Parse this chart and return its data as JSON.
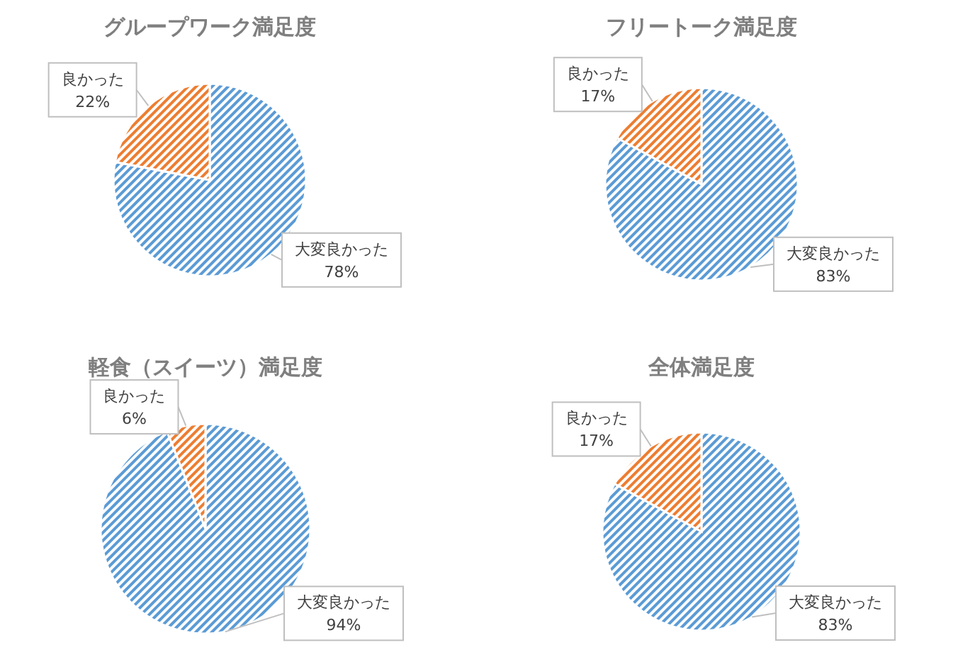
{
  "chart_data": [
    {
      "type": "pie",
      "title": "グループワーク満足度",
      "categories": [
        "大変良かった",
        "良かった"
      ],
      "values": [
        78,
        22
      ],
      "value_labels": [
        "78%",
        "22%"
      ],
      "colors": [
        "#5b9bd5",
        "#ed7d31"
      ],
      "legend": false
    },
    {
      "type": "pie",
      "title": "フリートーク満足度",
      "categories": [
        "大変良かった",
        "良かった"
      ],
      "values": [
        83,
        17
      ],
      "value_labels": [
        "83%",
        "17%"
      ],
      "colors": [
        "#5b9bd5",
        "#ed7d31"
      ],
      "legend": false
    },
    {
      "type": "pie",
      "title": "軽食（スイーツ）満足度",
      "categories": [
        "大変良かった",
        "良かった"
      ],
      "values": [
        94,
        6
      ],
      "value_labels": [
        "94%",
        "6%"
      ],
      "colors": [
        "#5b9bd5",
        "#ed7d31"
      ],
      "legend": false
    },
    {
      "type": "pie",
      "title": "全体満足度",
      "categories": [
        "大変良かった",
        "良かった"
      ],
      "values": [
        83,
        17
      ],
      "value_labels": [
        "83%",
        "17%"
      ],
      "colors": [
        "#5b9bd5",
        "#ed7d31"
      ],
      "legend": false
    }
  ]
}
